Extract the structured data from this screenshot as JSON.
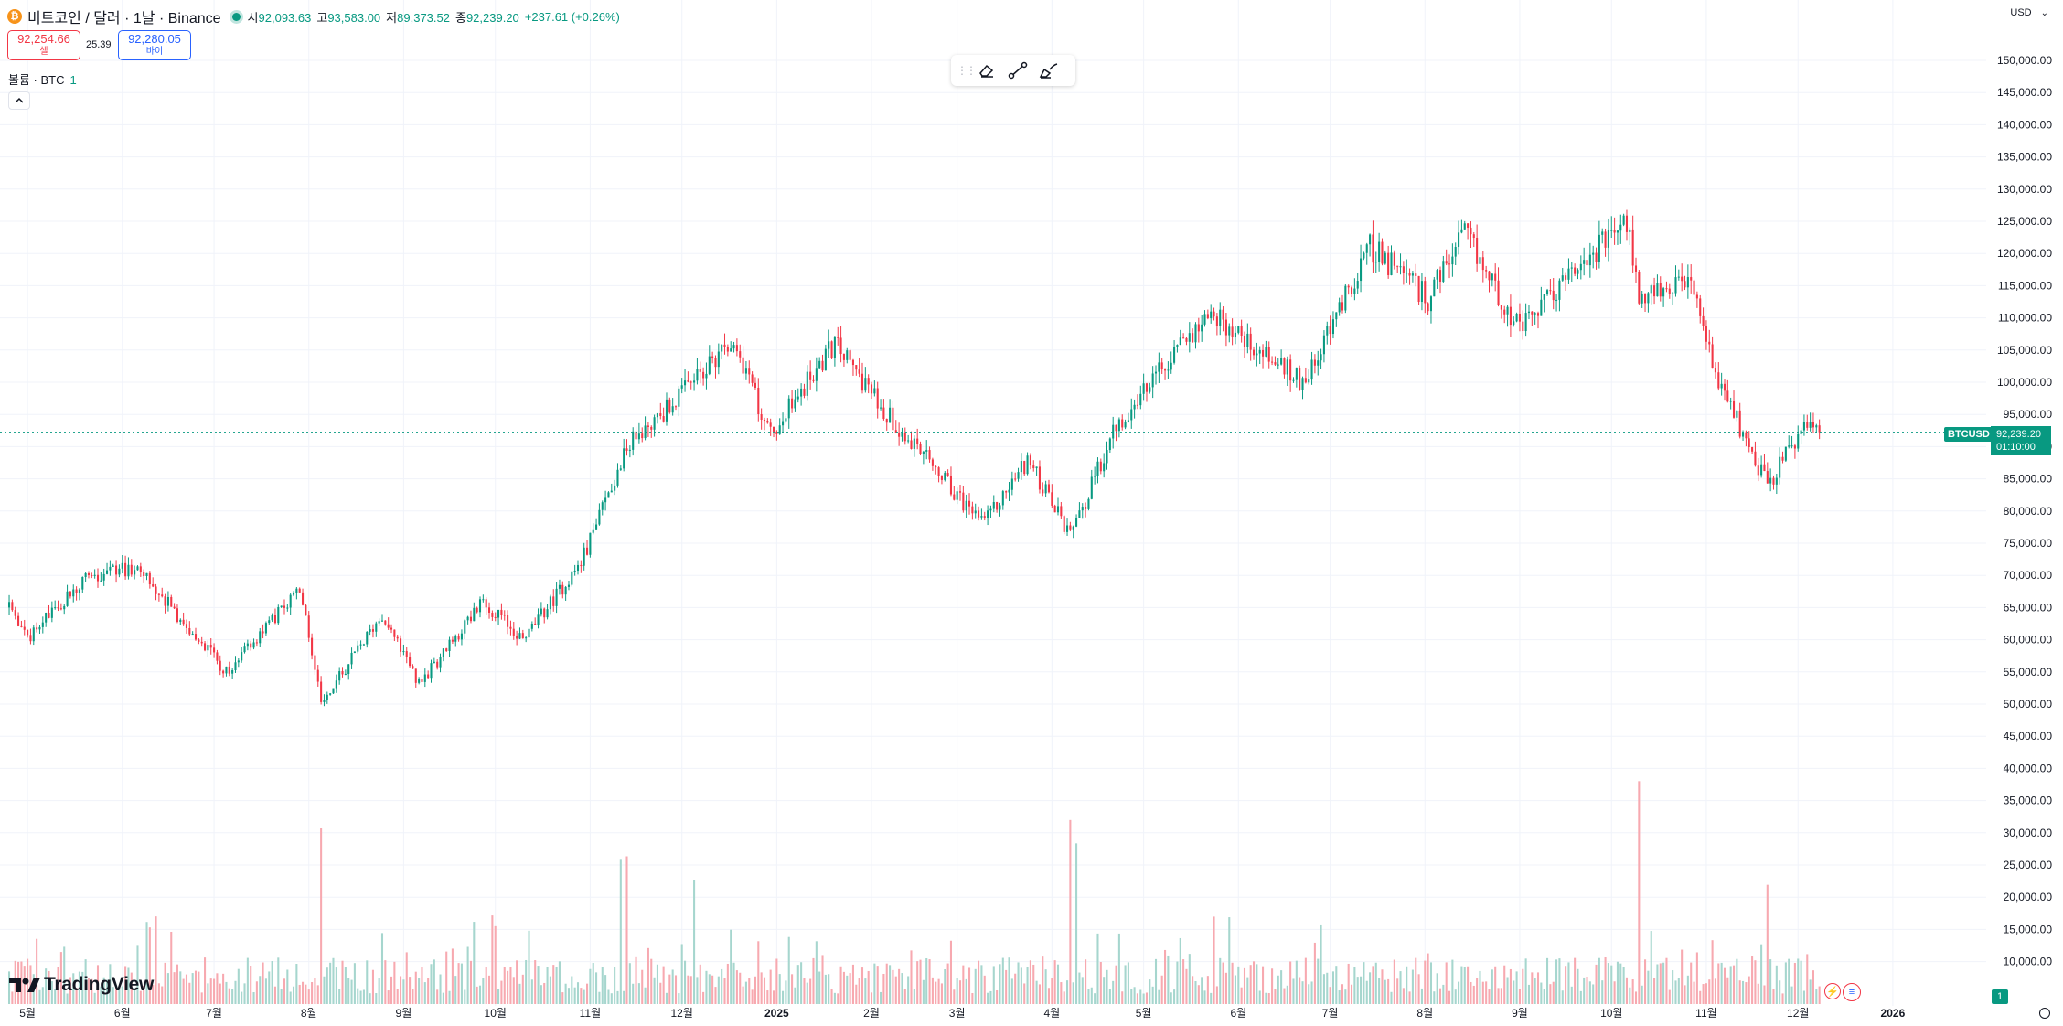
{
  "header": {
    "coin_letter": "₿",
    "symbol_title": "비트코인 / 달러 · 1날 · Binance",
    "ohlc": [
      {
        "label": "시",
        "value": "92,093.63"
      },
      {
        "label": "고",
        "value": "93,583.00"
      },
      {
        "label": "저",
        "value": "89,373.52"
      },
      {
        "label": "종",
        "value": "92,239.20"
      }
    ],
    "change": "+237.61 (+0.26%)"
  },
  "trade": {
    "sell_price": "92,254.66",
    "sell_label": "셀",
    "spread": "25.39",
    "buy_price": "92,280.05",
    "buy_label": "바이"
  },
  "volume_legend": {
    "label": "볼륨 · BTC",
    "value": "1"
  },
  "currency": "USD",
  "last_price": {
    "symbol": "BTCUSD",
    "price": "92,239.20",
    "countdown": "01:10:00"
  },
  "price_axis_labels": [
    "150,000.00",
    "145,000.00",
    "140,000.00",
    "135,000.00",
    "130,000.00",
    "125,000.00",
    "120,000.00",
    "115,000.00",
    "110,000.00",
    "105,000.00",
    "100,000.00",
    "95,000.00",
    "90,000.00",
    "85,000.00",
    "80,000.00",
    "75,000.00",
    "70,000.00",
    "65,000.00",
    "60,000.00",
    "55,000.00",
    "50,000.00",
    "45,000.00",
    "40,000.00",
    "35,000.00",
    "30,000.00",
    "25,000.00",
    "20,000.00",
    "15,000.00",
    "10,000.00"
  ],
  "volume_scale_badge": "1",
  "time_axis_labels": [
    "5월",
    "6월",
    "7월",
    "8월",
    "9월",
    "10월",
    "11월",
    "12월",
    "2025",
    "2월",
    "3월",
    "4월",
    "5월",
    "6월",
    "7월",
    "8월",
    "9월",
    "10월",
    "11월",
    "12월",
    "2026"
  ],
  "branding": "TradingView",
  "icons": {
    "eraser": "eraser-icon",
    "trendline": "trend-line-icon",
    "brush": "brush-icon",
    "collapse": "chevron-up-icon",
    "settings": "settings-icon"
  },
  "colors": {
    "up": "#089981",
    "down": "#f23645",
    "up_vol": "#a6d6ce",
    "down_vol": "#f7a9b0",
    "grid": "#f0f3fa"
  },
  "chart_data": {
    "type": "candlestick",
    "title": "비트코인 / 달러 · 1날 · Binance",
    "price_range": [
      45000,
      150000
    ],
    "grid": true,
    "price_anchors": [
      {
        "date": "2024-04-25",
        "price": 65000
      },
      {
        "date": "2024-05-01",
        "price": 60000
      },
      {
        "date": "2024-05-20",
        "price": 70000
      },
      {
        "date": "2024-06-06",
        "price": 71000
      },
      {
        "date": "2024-07-05",
        "price": 55000
      },
      {
        "date": "2024-07-29",
        "price": 68000
      },
      {
        "date": "2024-08-05",
        "price": 50000
      },
      {
        "date": "2024-08-25",
        "price": 64000
      },
      {
        "date": "2024-09-06",
        "price": 53000
      },
      {
        "date": "2024-09-27",
        "price": 66000
      },
      {
        "date": "2024-10-10",
        "price": 60000
      },
      {
        "date": "2024-10-29",
        "price": 72000
      },
      {
        "date": "2024-11-13",
        "price": 90000
      },
      {
        "date": "2024-12-05",
        "price": 100000
      },
      {
        "date": "2024-12-17",
        "price": 107000
      },
      {
        "date": "2024-12-30",
        "price": 92000
      },
      {
        "date": "2025-01-20",
        "price": 106000
      },
      {
        "date": "2025-02-03",
        "price": 97000
      },
      {
        "date": "2025-02-26",
        "price": 84000
      },
      {
        "date": "2025-03-10",
        "price": 78000
      },
      {
        "date": "2025-03-24",
        "price": 88000
      },
      {
        "date": "2025-04-07",
        "price": 76000
      },
      {
        "date": "2025-04-22",
        "price": 93000
      },
      {
        "date": "2025-05-22",
        "price": 111000
      },
      {
        "date": "2025-06-22",
        "price": 100000
      },
      {
        "date": "2025-07-14",
        "price": 121000
      },
      {
        "date": "2025-08-02",
        "price": 113000
      },
      {
        "date": "2025-08-14",
        "price": 123000
      },
      {
        "date": "2025-09-01",
        "price": 108000
      },
      {
        "date": "2025-09-18",
        "price": 117000
      },
      {
        "date": "2025-10-06",
        "price": 125000
      },
      {
        "date": "2025-10-10",
        "price": 113000
      },
      {
        "date": "2025-10-27",
        "price": 115000
      },
      {
        "date": "2025-11-04",
        "price": 101000
      },
      {
        "date": "2025-11-21",
        "price": 84000
      },
      {
        "date": "2025-12-03",
        "price": 93000
      },
      {
        "date": "2025-12-08",
        "price": 92239
      }
    ],
    "volume_range": [
      0,
      45000
    ],
    "volume_spikes": [
      {
        "date": "2024-08-05",
        "volume": 34000
      },
      {
        "date": "2024-11-11",
        "volume": 28000
      },
      {
        "date": "2024-11-13",
        "volume": 28500
      },
      {
        "date": "2024-12-05",
        "volume": 24000
      },
      {
        "date": "2025-04-07",
        "volume": 35500
      },
      {
        "date": "2025-04-09",
        "volume": 31000
      },
      {
        "date": "2025-10-10",
        "volume": 43000
      },
      {
        "date": "2025-11-21",
        "volume": 23000
      }
    ],
    "x_range": [
      "2024-04-22",
      "2026-01-10"
    ],
    "month_ticks": [
      "2024-05-01",
      "2024-06-01",
      "2024-07-01",
      "2024-08-01",
      "2024-09-01",
      "2024-10-01",
      "2024-11-01",
      "2024-12-01",
      "2025-01-01",
      "2025-02-01",
      "2025-03-01",
      "2025-04-01",
      "2025-05-01",
      "2025-06-01",
      "2025-07-01",
      "2025-08-01",
      "2025-09-01",
      "2025-10-01",
      "2025-11-01",
      "2025-12-01",
      "2026-01-01"
    ]
  }
}
